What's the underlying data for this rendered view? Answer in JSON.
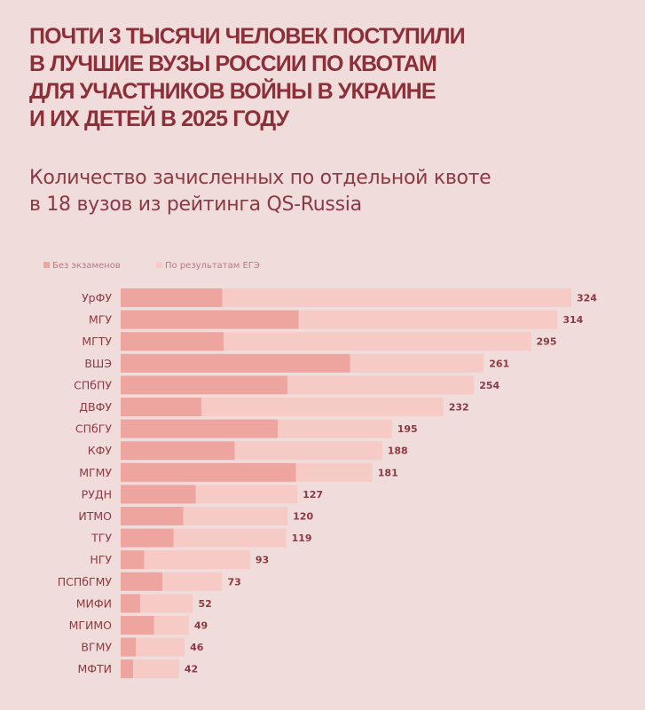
{
  "header": {
    "title_lines": [
      "ПОЧТИ 3 ТЫСЯЧИ ЧЕЛОВЕК ПОСТУПИЛИ",
      "В ЛУЧШИЕ ВУЗЫ РОССИИ ПО КВОТАМ",
      "ДЛЯ УЧАСТНИКОВ ВОЙНЫ В УКРАИНЕ",
      "И ИХ ДЕТЕЙ В 2025 ГОДУ"
    ],
    "subtitle_lines": [
      "Количество зачисленных по отдельной квоте",
      "в 18 вузов из рейтинга QS-Russia"
    ]
  },
  "colors": {
    "background": "#f1dcdc",
    "title": "#8c2f39",
    "text": "#8a3a42",
    "series_no_exam": "#eea5a0",
    "series_ege": "#f6cbc5"
  },
  "chart_data": {
    "type": "bar",
    "orientation": "horizontal",
    "stacked": true,
    "title": "Количество зачисленных по отдельной квоте в 18 вузов из рейтинга QS-Russia",
    "xlabel": "",
    "ylabel": "",
    "xlim": [
      0,
      324
    ],
    "legend_position": "top-left",
    "categories": [
      "УрФУ",
      "МГУ",
      "МГТУ",
      "ВШЭ",
      "СПбПУ",
      "ДВФУ",
      "СПбГУ",
      "КФУ",
      "МГМУ",
      "РУДН",
      "ИТМО",
      "ТГУ",
      "НГУ",
      "ПСПбГМУ",
      "МИФИ",
      "МГИМО",
      "ВГМУ",
      "МФТИ"
    ],
    "totals": [
      324,
      314,
      295,
      261,
      254,
      232,
      195,
      188,
      181,
      127,
      120,
      119,
      93,
      73,
      52,
      49,
      46,
      42
    ],
    "series": [
      {
        "name": "Без экзаменов",
        "values": [
          73,
          128,
          74,
          165,
          120,
          58,
          113,
          82,
          126,
          54,
          45,
          38,
          17,
          30,
          14,
          24,
          11,
          9
        ]
      },
      {
        "name": "По результатам ЕГЭ",
        "values": [
          251,
          186,
          221,
          96,
          134,
          174,
          82,
          106,
          55,
          73,
          75,
          81,
          76,
          43,
          38,
          25,
          35,
          33
        ]
      }
    ]
  }
}
